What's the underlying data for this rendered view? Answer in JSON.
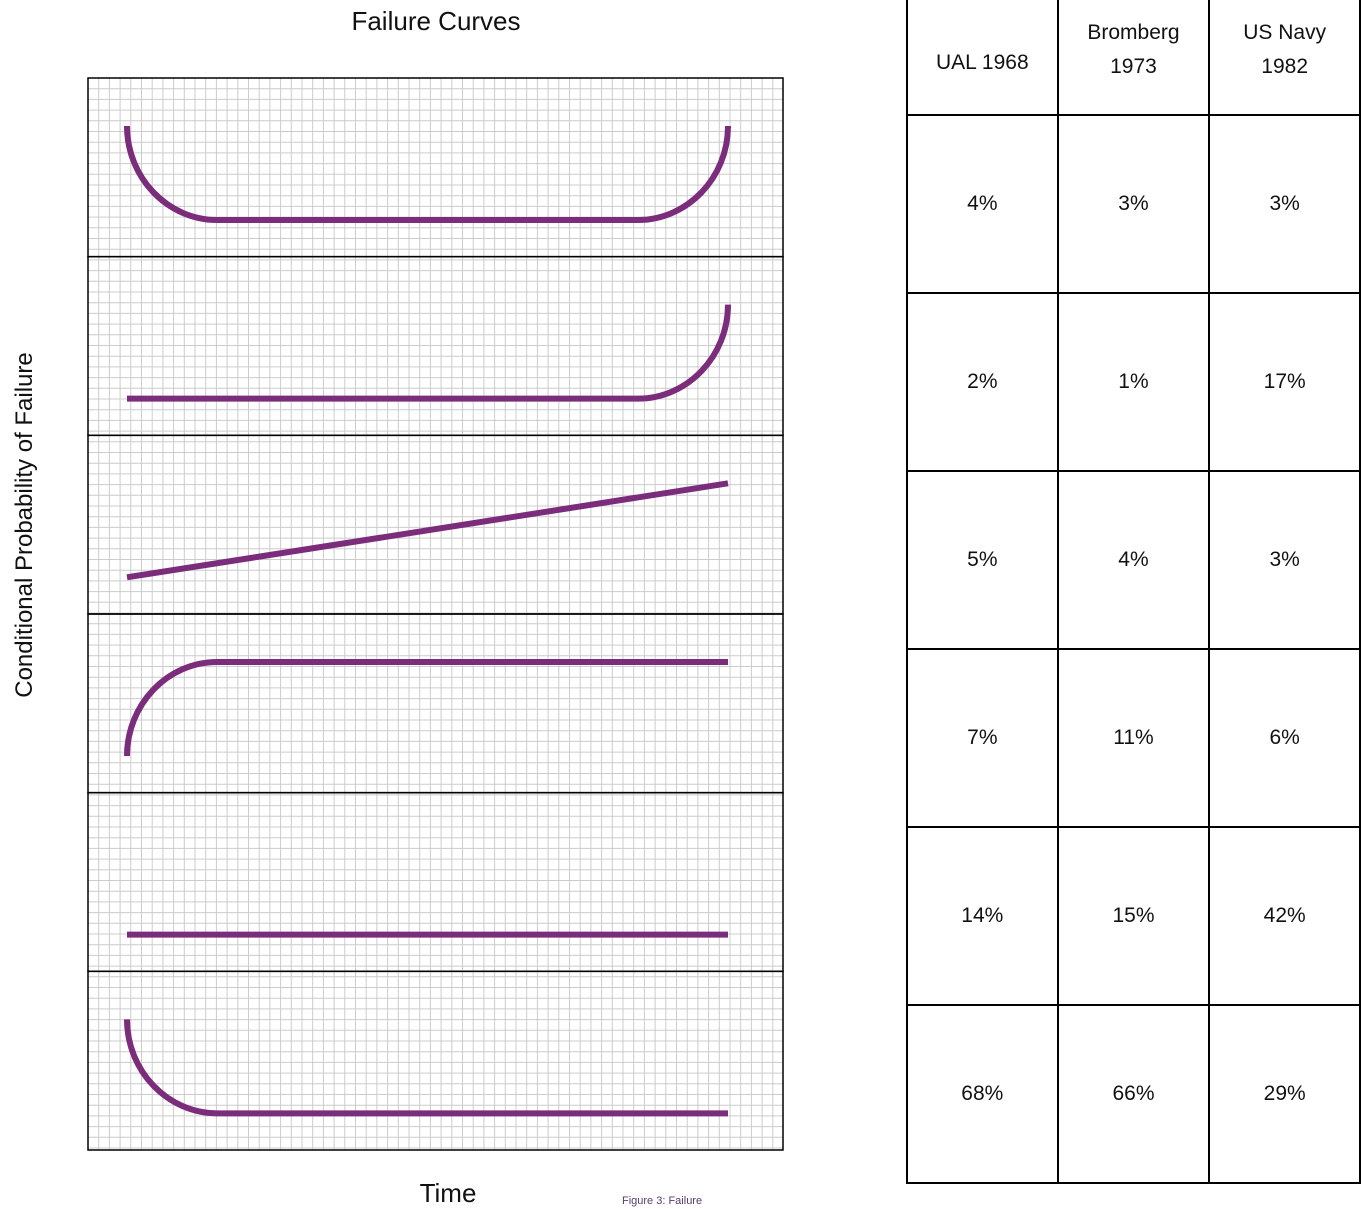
{
  "chart_data": {
    "type": "line",
    "title": "Failure Curves",
    "xlabel": "Time",
    "ylabel": "Conditional Probability of Failure",
    "grid": true,
    "line_color": "#7b2d7b",
    "panels": [
      {
        "pattern": "bathtub",
        "x": [
          0,
          0.15,
          0.85,
          1
        ],
        "y": [
          1,
          0,
          0,
          1
        ]
      },
      {
        "pattern": "wear-out",
        "x": [
          0,
          0.85,
          1
        ],
        "y": [
          0,
          0,
          1
        ]
      },
      {
        "pattern": "gradual-increase",
        "x": [
          0,
          1
        ],
        "y": [
          0,
          1
        ]
      },
      {
        "pattern": "low-then-steady",
        "x": [
          0,
          0.15,
          1
        ],
        "y": [
          0,
          1,
          1
        ]
      },
      {
        "pattern": "random",
        "x": [
          0,
          1
        ],
        "y": [
          0,
          0
        ]
      },
      {
        "pattern": "infant-mortality",
        "x": [
          0,
          0.15,
          1
        ],
        "y": [
          1,
          0,
          0
        ]
      }
    ]
  },
  "table": {
    "headers": [
      {
        "line1": "UAL 1968",
        "line2": ""
      },
      {
        "line1": "Bromberg",
        "line2": "1973"
      },
      {
        "line1": "US Navy",
        "line2": "1982"
      }
    ],
    "rows": [
      [
        "4%",
        "3%",
        "3%"
      ],
      [
        "2%",
        "1%",
        "17%"
      ],
      [
        "5%",
        "4%",
        "3%"
      ],
      [
        "7%",
        "11%",
        "6%"
      ],
      [
        "14%",
        "15%",
        "42%"
      ],
      [
        "68%",
        "66%",
        "29%"
      ]
    ]
  },
  "caption": "Figure 3: Failure"
}
